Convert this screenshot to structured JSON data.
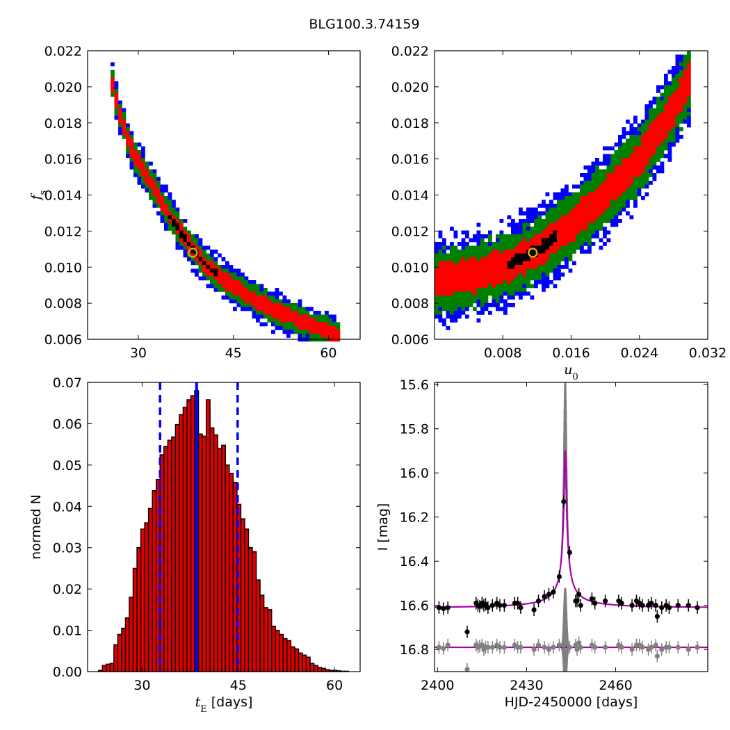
{
  "figure": {
    "title": "BLG100.3.74159"
  },
  "colors": {
    "sigma1": "#ff0000",
    "sigma2": "#008000",
    "sigma3": "#0000ff",
    "best_density": "#000000",
    "best_fit_marker": "#c8b400",
    "model_curve": "#aa00aa",
    "error_band": "#808080",
    "hist_fill": "#dd0000",
    "hist_edge": "#000000",
    "vline": "#0000ff"
  },
  "chart_data": [
    {
      "id": "fs_vs_tE",
      "type": "heatmap",
      "xlabel": "",
      "ylabel": "f_s",
      "xlim": [
        22,
        65
      ],
      "ylim": [
        0.006,
        0.022
      ],
      "xticks": [
        30,
        45,
        60
      ],
      "xtick_labels": [
        "30",
        "45",
        "60"
      ],
      "yticks": [
        0.006,
        0.008,
        0.01,
        0.012,
        0.014,
        0.016,
        0.018,
        0.02,
        0.022
      ],
      "ytick_labels": [
        "0.006",
        "0.008",
        "0.010",
        "0.012",
        "0.014",
        "0.016",
        "0.018",
        "0.020",
        "0.022"
      ],
      "best_fit": {
        "x": 38.6,
        "y": 0.0108
      },
      "ridge": [
        [
          25.5,
          0.0208
        ],
        [
          27,
          0.0185
        ],
        [
          29,
          0.0165
        ],
        [
          31,
          0.0152
        ],
        [
          33,
          0.0141
        ],
        [
          35,
          0.0128
        ],
        [
          37,
          0.0118
        ],
        [
          39,
          0.0108
        ],
        [
          41,
          0.01
        ],
        [
          44,
          0.0092
        ],
        [
          47,
          0.0085
        ],
        [
          50,
          0.0079
        ],
        [
          53,
          0.0074
        ],
        [
          56,
          0.007
        ],
        [
          59,
          0.0065
        ],
        [
          62,
          0.0062
        ]
      ],
      "levels": [
        {
          "name": "3sigma",
          "halfwidth": 0.0011
        },
        {
          "name": "2sigma",
          "halfwidth": 0.00075
        },
        {
          "name": "1sigma",
          "halfwidth": 0.00042
        },
        {
          "name": "best",
          "halfwidth": 0.00018,
          "xrange": [
            34.5,
            42.5
          ]
        }
      ]
    },
    {
      "id": "fs_vs_u0",
      "type": "heatmap",
      "xlabel": "u_0",
      "ylabel": "",
      "xlim": [
        0.0,
        0.032
      ],
      "ylim": [
        0.006,
        0.022
      ],
      "xticks": [
        0.008,
        0.016,
        0.024,
        0.032
      ],
      "xtick_labels": [
        "0.008",
        "0.016",
        "0.024",
        "0.032"
      ],
      "yticks": [
        0.006,
        0.008,
        0.01,
        0.012,
        0.014,
        0.016,
        0.018,
        0.02,
        0.022
      ],
      "ytick_labels": [
        "0.006",
        "0.008",
        "0.010",
        "0.012",
        "0.014",
        "0.016",
        "0.018",
        "0.020",
        "0.022"
      ],
      "best_fit": {
        "x": 0.0115,
        "y": 0.0108
      },
      "ridge": [
        [
          0.0,
          0.0092
        ],
        [
          0.004,
          0.0095
        ],
        [
          0.008,
          0.01
        ],
        [
          0.012,
          0.0109
        ],
        [
          0.016,
          0.0123
        ],
        [
          0.02,
          0.014
        ],
        [
          0.024,
          0.016
        ],
        [
          0.028,
          0.0188
        ],
        [
          0.03,
          0.0205
        ]
      ],
      "levels": [
        {
          "name": "3sigma",
          "halfwidth": 0.0024
        },
        {
          "name": "2sigma",
          "halfwidth": 0.0017
        },
        {
          "name": "1sigma",
          "halfwidth": 0.0009
        },
        {
          "name": "best",
          "halfwidth": 0.0003,
          "xrange": [
            0.0085,
            0.0145
          ]
        }
      ]
    },
    {
      "id": "tE_histogram",
      "type": "bar",
      "xlabel": "t_E [days]",
      "ylabel": "normed N",
      "xlim": [
        21.5,
        64
      ],
      "ylim": [
        0.0,
        0.07
      ],
      "xticks": [
        30,
        45,
        60
      ],
      "xtick_labels": [
        "30",
        "45",
        "60"
      ],
      "yticks": [
        0.0,
        0.01,
        0.02,
        0.03,
        0.04,
        0.05,
        0.06,
        0.07
      ],
      "ytick_labels": [
        "0.00",
        "0.01",
        "0.02",
        "0.03",
        "0.04",
        "0.05",
        "0.06",
        "0.07"
      ],
      "bin_start": 22.0,
      "bin_width": 0.6,
      "values": [
        0.0,
        0.0,
        0.0003,
        0.0015,
        0.0018,
        0.002,
        0.0065,
        0.009,
        0.0105,
        0.013,
        0.018,
        0.025,
        0.03,
        0.0345,
        0.036,
        0.0395,
        0.0438,
        0.0465,
        0.0525,
        0.0545,
        0.056,
        0.0568,
        0.0598,
        0.0622,
        0.064,
        0.0658,
        0.0668,
        0.068,
        0.0575,
        0.057,
        0.0658,
        0.059,
        0.0573,
        0.054,
        0.0548,
        0.05,
        0.048,
        0.0458,
        0.0405,
        0.037,
        0.0345,
        0.03,
        0.029,
        0.0222,
        0.0185,
        0.0155,
        0.015,
        0.011,
        0.01,
        0.009,
        0.008,
        0.0075,
        0.006,
        0.0055,
        0.0045,
        0.004,
        0.0035,
        0.002,
        0.0015,
        0.001,
        0.0008,
        0.0005,
        0.0003,
        0.0003,
        0.0002,
        0.0001,
        0.0001,
        0.0,
        0.0
      ],
      "vlines": [
        {
          "x": 38.5,
          "style": "solid"
        },
        {
          "x": 32.8,
          "style": "dashed"
        },
        {
          "x": 44.9,
          "style": "dashed"
        }
      ]
    },
    {
      "id": "light_curve",
      "type": "scatter",
      "xlabel": "HJD-2450000 [days]",
      "ylabel": "I [mag]",
      "xlim": [
        2399,
        2491
      ],
      "ylim": [
        16.9,
        15.59
      ],
      "xticks": [
        2400,
        2430,
        2460
      ],
      "xtick_labels": [
        "2400",
        "2430",
        "2460"
      ],
      "yticks": [
        15.6,
        15.8,
        16.0,
        16.2,
        16.4,
        16.6,
        16.8
      ],
      "ytick_labels": [
        "15.6",
        "15.8",
        "16.0",
        "16.2",
        "16.4",
        "16.6",
        "16.8"
      ],
      "model": {
        "t0": 2443.0,
        "baseline": 16.61,
        "peak": 15.9,
        "tE": 38.5,
        "u0": 0.0115
      },
      "residual_offset": 16.79,
      "points": [
        [
          2400.5,
          16.61
        ],
        [
          2402.0,
          16.615
        ],
        [
          2403.5,
          16.61
        ],
        [
          2410.0,
          16.72
        ],
        [
          2413.0,
          16.59
        ],
        [
          2413.6,
          16.6
        ],
        [
          2414.2,
          16.605
        ],
        [
          2415.0,
          16.59
        ],
        [
          2415.6,
          16.6
        ],
        [
          2416.2,
          16.595
        ],
        [
          2417.0,
          16.61
        ],
        [
          2418.5,
          16.6
        ],
        [
          2420.0,
          16.59
        ],
        [
          2421.0,
          16.6
        ],
        [
          2422.5,
          16.6
        ],
        [
          2426.0,
          16.59
        ],
        [
          2427.0,
          16.59
        ],
        [
          2428.0,
          16.61
        ],
        [
          2432.5,
          16.62
        ],
        [
          2434.0,
          16.58
        ],
        [
          2436.0,
          16.56
        ],
        [
          2437.5,
          16.55
        ],
        [
          2439.0,
          16.54
        ],
        [
          2441.0,
          16.47
        ],
        [
          2442.5,
          16.13
        ],
        [
          2444.5,
          16.36
        ],
        [
          2446.5,
          16.58
        ],
        [
          2447.0,
          16.58
        ],
        [
          2447.6,
          16.55
        ],
        [
          2448.2,
          16.6
        ],
        [
          2452.0,
          16.57
        ],
        [
          2453.0,
          16.59
        ],
        [
          2456.5,
          16.58
        ],
        [
          2461.0,
          16.58
        ],
        [
          2462.0,
          16.59
        ],
        [
          2465.5,
          16.6
        ],
        [
          2467.0,
          16.58
        ],
        [
          2468.0,
          16.59
        ],
        [
          2469.0,
          16.6
        ],
        [
          2471.0,
          16.6
        ],
        [
          2472.0,
          16.59
        ],
        [
          2473.5,
          16.6
        ],
        [
          2474.0,
          16.65
        ],
        [
          2475.5,
          16.61
        ],
        [
          2477.0,
          16.6
        ],
        [
          2478.0,
          16.61
        ],
        [
          2481.0,
          16.6
        ],
        [
          2484.5,
          16.6
        ],
        [
          2487.5,
          16.61
        ]
      ],
      "residuals": [
        [
          2400.5,
          16.79
        ],
        [
          2402.0,
          16.795
        ],
        [
          2403.5,
          16.78
        ],
        [
          2410.0,
          16.89
        ],
        [
          2413.0,
          16.78
        ],
        [
          2413.6,
          16.79
        ],
        [
          2414.2,
          16.785
        ],
        [
          2415.0,
          16.78
        ],
        [
          2415.6,
          16.8
        ],
        [
          2416.2,
          16.79
        ],
        [
          2417.0,
          16.79
        ],
        [
          2418.5,
          16.79
        ],
        [
          2420.0,
          16.78
        ],
        [
          2421.0,
          16.79
        ],
        [
          2422.5,
          16.79
        ],
        [
          2426.0,
          16.78
        ],
        [
          2427.0,
          16.79
        ],
        [
          2428.0,
          16.79
        ],
        [
          2432.5,
          16.8
        ],
        [
          2434.0,
          16.78
        ],
        [
          2436.0,
          16.79
        ],
        [
          2437.5,
          16.8
        ],
        [
          2439.0,
          16.79
        ],
        [
          2441.0,
          16.78
        ],
        [
          2442.5,
          16.78
        ],
        [
          2444.5,
          16.79
        ],
        [
          2446.5,
          16.78
        ],
        [
          2447.0,
          16.8
        ],
        [
          2447.6,
          16.77
        ],
        [
          2448.2,
          16.79
        ],
        [
          2452.0,
          16.78
        ],
        [
          2453.0,
          16.79
        ],
        [
          2456.5,
          16.79
        ],
        [
          2461.0,
          16.78
        ],
        [
          2462.0,
          16.79
        ],
        [
          2465.5,
          16.8
        ],
        [
          2467.0,
          16.78
        ],
        [
          2468.0,
          16.78
        ],
        [
          2469.0,
          16.79
        ],
        [
          2471.0,
          16.8
        ],
        [
          2472.0,
          16.79
        ],
        [
          2473.5,
          16.78
        ],
        [
          2474.0,
          16.83
        ],
        [
          2475.5,
          16.8
        ],
        [
          2477.0,
          16.79
        ],
        [
          2478.0,
          16.79
        ],
        [
          2481.0,
          16.79
        ],
        [
          2484.5,
          16.8
        ],
        [
          2487.5,
          16.79
        ]
      ]
    }
  ]
}
